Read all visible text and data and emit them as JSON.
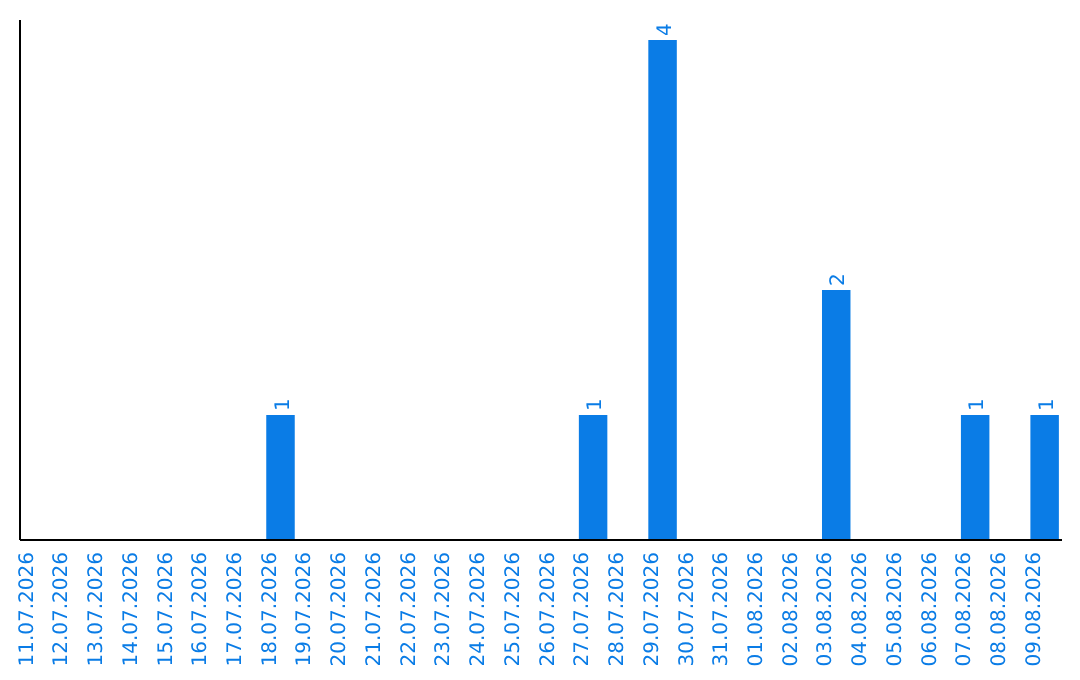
{
  "chart_data": {
    "type": "bar",
    "categories": [
      "11.07.2026",
      "12.07.2026",
      "13.07.2026",
      "14.07.2026",
      "15.07.2026",
      "16.07.2026",
      "17.07.2026",
      "18.07.2026",
      "19.07.2026",
      "20.07.2026",
      "21.07.2026",
      "22.07.2026",
      "23.07.2026",
      "24.07.2026",
      "25.07.2026",
      "26.07.2026",
      "27.07.2026",
      "28.07.2026",
      "29.07.2026",
      "30.07.2026",
      "31.07.2026",
      "01.08.2026",
      "02.08.2026",
      "03.08.2026",
      "04.08.2026",
      "05.08.2026",
      "06.08.2026",
      "07.08.2026",
      "08.08.2026",
      "09.08.2026"
    ],
    "values": [
      0,
      0,
      0,
      0,
      0,
      0,
      0,
      1,
      0,
      0,
      0,
      0,
      0,
      0,
      0,
      0,
      1,
      0,
      4,
      0,
      0,
      0,
      0,
      2,
      0,
      0,
      0,
      1,
      0,
      1
    ],
    "value_labels": [
      null,
      null,
      null,
      null,
      null,
      null,
      null,
      "1",
      null,
      null,
      null,
      null,
      null,
      null,
      null,
      null,
      "1",
      null,
      "4",
      null,
      null,
      null,
      null,
      "2",
      null,
      null,
      null,
      "1",
      null,
      "1"
    ],
    "color": "#0a7ce6"
  }
}
